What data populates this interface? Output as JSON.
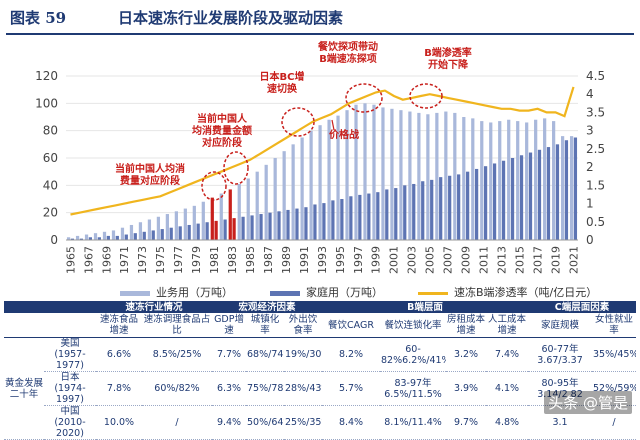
{
  "header": {
    "figure_no": "图表 59",
    "title": "日本速冻行业发展阶段及驱动因素"
  },
  "chart_data": {
    "type": "bar",
    "title": "日本速冻行业发展阶段及驱动因素",
    "x": [
      1965,
      1966,
      1967,
      1968,
      1969,
      1970,
      1971,
      1972,
      1973,
      1974,
      1975,
      1976,
      1977,
      1978,
      1979,
      1980,
      1981,
      1982,
      1983,
      1984,
      1985,
      1986,
      1987,
      1988,
      1989,
      1990,
      1991,
      1992,
      1993,
      1994,
      1995,
      1996,
      1997,
      1998,
      1999,
      2000,
      2001,
      2002,
      2003,
      2004,
      2005,
      2006,
      2007,
      2008,
      2009,
      2010,
      2011,
      2012,
      2013,
      2014,
      2015,
      2016,
      2017,
      2018,
      2019,
      2020,
      2021
    ],
    "x_ticks": [
      "1965",
      "1967",
      "1969",
      "1971",
      "1973",
      "1975",
      "1977",
      "1979",
      "1981",
      "1983",
      "1985",
      "1987",
      "1989",
      "1991",
      "1993",
      "1995",
      "1997",
      "1999",
      "2001",
      "2003",
      "2005",
      "2007",
      "2009",
      "2011",
      "2013",
      "2015",
      "2017",
      "2019",
      "2021"
    ],
    "series": [
      {
        "name": "业务用（万吨）",
        "axis": "left",
        "color": "#a9b8db",
        "values": [
          2,
          3,
          4,
          5,
          6,
          7,
          9,
          11,
          13,
          15,
          17,
          19,
          21,
          23,
          25,
          28,
          31,
          34,
          37,
          41,
          45,
          50,
          55,
          60,
          65,
          70,
          75,
          80,
          84,
          88,
          91,
          95,
          99,
          100,
          99,
          97,
          96,
          95,
          94,
          93,
          92,
          93,
          94,
          93,
          90,
          89,
          87,
          86,
          87,
          88,
          87,
          86,
          88,
          89,
          87,
          76,
          76
        ]
      },
      {
        "name": "家庭用（万吨）",
        "axis": "left",
        "color": "#5d74b3",
        "values": [
          1,
          1,
          2,
          2,
          3,
          3,
          4,
          5,
          6,
          7,
          8,
          9,
          10,
          11,
          12,
          13,
          14,
          15,
          16,
          17,
          18,
          19,
          20,
          21,
          22,
          23,
          24,
          26,
          27,
          29,
          30,
          32,
          33,
          34,
          35,
          37,
          38,
          40,
          41,
          43,
          44,
          46,
          47,
          48,
          50,
          52,
          54,
          56,
          58,
          60,
          62,
          64,
          66,
          68,
          70,
          73,
          75
        ]
      },
      {
        "name": "速冻B端渗透率（吨/亿日元）",
        "axis": "right",
        "color": "#f0b51e",
        "type": "line",
        "values": [
          0.7,
          0.75,
          0.8,
          0.85,
          0.9,
          0.95,
          1.0,
          1.05,
          1.1,
          1.15,
          1.2,
          1.3,
          1.4,
          1.5,
          1.6,
          1.7,
          1.8,
          1.9,
          2.0,
          2.1,
          2.2,
          2.35,
          2.5,
          2.65,
          2.8,
          2.95,
          3.1,
          3.25,
          3.35,
          3.45,
          3.6,
          3.75,
          3.85,
          3.95,
          4.05,
          4.1,
          3.95,
          3.85,
          3.9,
          3.95,
          4.0,
          3.95,
          3.9,
          3.85,
          3.8,
          3.75,
          3.7,
          3.65,
          3.6,
          3.6,
          3.55,
          3.55,
          3.6,
          3.5,
          3.5,
          3.4,
          4.2
        ]
      }
    ],
    "highlight_bars": [
      1981,
      1983
    ],
    "highlight_color": "#c8201c",
    "ylim_left": [
      0,
      120
    ],
    "yticks_left": [
      "0",
      "20",
      "40",
      "60",
      "80",
      "100",
      "120"
    ],
    "ylim_right": [
      0,
      4.5
    ],
    "yticks_right": [
      "0",
      "0.5",
      "1",
      "1.5",
      "2",
      "2.5",
      "3",
      "3.5",
      "4",
      "4.5"
    ],
    "annotations": [
      {
        "id": "a1",
        "year": 1981,
        "lines": [
          "当前中国人均消",
          "费量对应阶段"
        ]
      },
      {
        "id": "a2",
        "year": 1983,
        "lines": [
          "当前中国人",
          "均消费量金额",
          "对应阶段"
        ]
      },
      {
        "id": "a3",
        "year": 1990,
        "lines": [
          "日本BC增",
          "速切换"
        ]
      },
      {
        "id": "a4",
        "year": 1993,
        "lines": [
          "价格战"
        ]
      },
      {
        "id": "a5",
        "year": 1997,
        "lines": [
          "餐饮探项带动",
          "B端速冻探项"
        ]
      },
      {
        "id": "a6",
        "year": 2006,
        "lines": [
          "B端渗透率",
          "开始下降"
        ]
      }
    ],
    "legend": [
      "业务用（万吨）",
      "家庭用（万吨）",
      "速冻B端渗透率（吨/亿日元）"
    ]
  },
  "table": {
    "group_headers": [
      "速冻行业情况",
      "宏观经济因素",
      "B端层面",
      "C端层面因素"
    ],
    "sub_headers": [
      "速冻食品增速",
      "速冻调理食品占比",
      "GDP增速",
      "城镇化率",
      "外出饮食率",
      "餐饮CAGR",
      "餐饮连锁化率",
      "房租成本增速",
      "人工成本增速",
      "家庭规模",
      "女性就业率"
    ],
    "side_label": "黄金发展二十年",
    "rows": [
      {
        "label": "美国(1957-1977)",
        "cells": [
          "6.6%",
          "8.5%/25%",
          "7.7%",
          "68%/74%",
          "19%/30%",
          "8.2%",
          "60-82%6.2%/41%",
          "3.2%",
          "7.4%",
          "60-77年3.67/3.37",
          "35%/45%"
        ]
      },
      {
        "label": "日本(1974-1997)",
        "cells": [
          "7.8%",
          "60%/82%",
          "6.3%",
          "75%/78%",
          "28%/43%",
          "5.7%",
          "83-97年6.5%/11.5%",
          "3.9%",
          "4.1%",
          "80-95年3.14/2.82",
          "52%/59%"
        ]
      },
      {
        "label": "中国(2010-2020)",
        "cells": [
          "10.0%",
          "/",
          "9.4%",
          "50%/64%",
          "25%/35%",
          "8.4%",
          "8.1%/11.4%",
          "9.7%",
          "4.8%",
          "3.1",
          "/"
        ]
      }
    ]
  },
  "watermark": "头条 @管是"
}
